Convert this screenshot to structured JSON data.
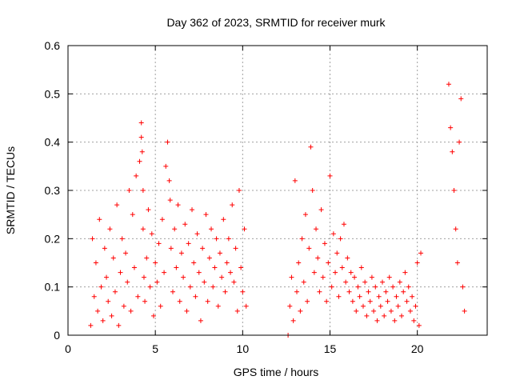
{
  "chart_data": {
    "type": "scatter",
    "title": "Day 362 of 2023, SRMTID for receiver murk",
    "xlabel": "GPS time / hours",
    "ylabel": "SRMTID / TECUs",
    "xlim": [
      0,
      24
    ],
    "ylim": [
      0,
      0.6
    ],
    "xticks": [
      0,
      5,
      10,
      15,
      20
    ],
    "xtick_labels": [
      "0",
      "5",
      "10",
      "15",
      "20"
    ],
    "yticks": [
      0,
      0.1,
      0.2,
      0.3,
      0.4,
      0.5,
      0.6
    ],
    "ytick_labels": [
      "0",
      "0.1",
      "0.2",
      "0.3",
      "0.4",
      "0.5",
      "0.6"
    ],
    "grid": true,
    "marker": "plus",
    "series": [
      {
        "name": "SRMTID",
        "color": "#ff0000",
        "x": [
          1.3,
          1.4,
          1.5,
          1.6,
          1.7,
          1.8,
          1.9,
          2.0,
          2.1,
          2.2,
          2.3,
          2.4,
          2.5,
          2.6,
          2.7,
          2.8,
          2.9,
          3.0,
          3.1,
          3.2,
          3.3,
          3.4,
          3.5,
          3.6,
          3.7,
          3.8,
          3.9,
          4.0,
          4.1,
          4.2,
          4.2,
          4.25,
          4.3,
          4.3,
          4.35,
          4.4,
          4.5,
          4.6,
          4.7,
          4.8,
          4.9,
          5.0,
          5.1,
          5.2,
          5.3,
          5.4,
          5.5,
          5.6,
          5.7,
          5.8,
          5.85,
          5.9,
          6.0,
          6.1,
          6.2,
          6.3,
          6.4,
          6.5,
          6.6,
          6.7,
          6.8,
          6.9,
          7.0,
          7.1,
          7.2,
          7.3,
          7.4,
          7.5,
          7.6,
          7.7,
          7.8,
          7.9,
          8.0,
          8.1,
          8.2,
          8.3,
          8.4,
          8.5,
          8.6,
          8.7,
          8.8,
          8.9,
          9.0,
          9.1,
          9.2,
          9.3,
          9.4,
          9.5,
          9.6,
          9.7,
          9.8,
          9.9,
          10.0,
          10.1,
          10.2,
          12.6,
          12.7,
          12.8,
          12.9,
          13.0,
          13.1,
          13.2,
          13.3,
          13.4,
          13.5,
          13.6,
          13.7,
          13.8,
          13.9,
          14.0,
          14.1,
          14.2,
          14.3,
          14.4,
          14.5,
          14.6,
          14.7,
          14.8,
          14.9,
          15.0,
          15.1,
          15.2,
          15.3,
          15.4,
          15.5,
          15.6,
          15.7,
          15.8,
          15.9,
          16.0,
          16.1,
          16.2,
          16.3,
          16.4,
          16.5,
          16.6,
          16.7,
          16.8,
          16.9,
          17.0,
          17.1,
          17.2,
          17.3,
          17.4,
          17.5,
          17.6,
          17.7,
          17.8,
          17.9,
          18.0,
          18.1,
          18.2,
          18.3,
          18.4,
          18.5,
          18.6,
          18.7,
          18.8,
          18.9,
          19.0,
          19.1,
          19.2,
          19.3,
          19.4,
          19.5,
          19.6,
          19.7,
          19.8,
          19.9,
          20.0,
          20.1,
          20.2,
          21.8,
          21.9,
          22.0,
          22.1,
          22.2,
          22.3,
          22.4,
          22.5,
          22.6,
          22.7
        ],
        "y": [
          0.02,
          0.2,
          0.08,
          0.15,
          0.05,
          0.24,
          0.1,
          0.03,
          0.18,
          0.12,
          0.07,
          0.22,
          0.04,
          0.16,
          0.09,
          0.27,
          0.02,
          0.13,
          0.2,
          0.06,
          0.17,
          0.11,
          0.3,
          0.05,
          0.25,
          0.14,
          0.33,
          0.08,
          0.36,
          0.44,
          0.41,
          0.38,
          0.3,
          0.22,
          0.12,
          0.07,
          0.16,
          0.26,
          0.1,
          0.21,
          0.04,
          0.15,
          0.11,
          0.19,
          0.06,
          0.24,
          0.13,
          0.35,
          0.4,
          0.32,
          0.28,
          0.18,
          0.09,
          0.22,
          0.14,
          0.27,
          0.07,
          0.17,
          0.12,
          0.23,
          0.05,
          0.19,
          0.1,
          0.26,
          0.15,
          0.08,
          0.21,
          0.13,
          0.03,
          0.18,
          0.11,
          0.25,
          0.07,
          0.16,
          0.22,
          0.1,
          0.14,
          0.2,
          0.06,
          0.17,
          0.12,
          0.24,
          0.09,
          0.15,
          0.2,
          0.13,
          0.27,
          0.11,
          0.18,
          0.05,
          0.3,
          0.14,
          0.09,
          0.22,
          0.06,
          0.0,
          0.06,
          0.12,
          0.03,
          0.32,
          0.09,
          0.15,
          0.05,
          0.2,
          0.11,
          0.25,
          0.07,
          0.18,
          0.39,
          0.3,
          0.13,
          0.22,
          0.16,
          0.09,
          0.26,
          0.12,
          0.19,
          0.07,
          0.15,
          0.33,
          0.1,
          0.21,
          0.13,
          0.17,
          0.08,
          0.2,
          0.14,
          0.23,
          0.11,
          0.16,
          0.09,
          0.13,
          0.07,
          0.12,
          0.05,
          0.1,
          0.08,
          0.14,
          0.06,
          0.11,
          0.04,
          0.09,
          0.07,
          0.12,
          0.05,
          0.1,
          0.03,
          0.08,
          0.06,
          0.11,
          0.04,
          0.09,
          0.07,
          0.12,
          0.05,
          0.1,
          0.03,
          0.08,
          0.06,
          0.11,
          0.04,
          0.09,
          0.13,
          0.07,
          0.1,
          0.05,
          0.08,
          0.03,
          0.06,
          0.15,
          0.02,
          0.17,
          0.52,
          0.43,
          0.38,
          0.3,
          0.22,
          0.15,
          0.4,
          0.49,
          0.1,
          0.05
        ]
      }
    ]
  }
}
